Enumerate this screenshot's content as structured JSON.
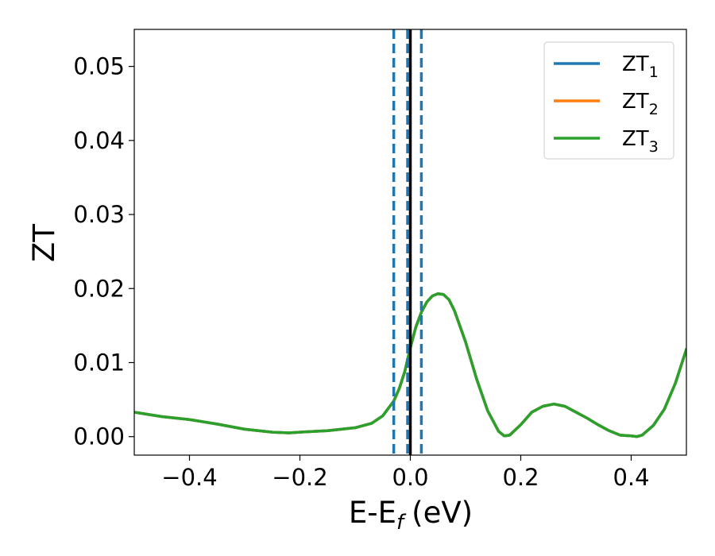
{
  "chart_data": {
    "type": "line",
    "xlabel": "E-E",
    "xlabel_sub": "f",
    "xlabel_unit": "(eV)",
    "ylabel": "ZT",
    "xlim": [
      -0.5,
      0.5
    ],
    "ylim": [
      -0.0025,
      0.055
    ],
    "x_ticks": [
      -0.4,
      -0.2,
      0.0,
      0.2,
      0.4
    ],
    "x_tick_labels": [
      "−0.4",
      "−0.2",
      "0.0",
      "0.2",
      "0.4"
    ],
    "y_ticks": [
      0.0,
      0.01,
      0.02,
      0.03,
      0.04,
      0.05
    ],
    "y_tick_labels": [
      "0.00",
      "0.01",
      "0.02",
      "0.03",
      "0.04",
      "0.05"
    ],
    "grid": false,
    "legend_position": "top-right",
    "series": [
      {
        "name": "ZT",
        "subscript": "1",
        "color": "#1f77b4",
        "x": [
          -0.5,
          -0.45,
          -0.4,
          -0.35,
          -0.3,
          -0.25,
          -0.22,
          -0.2,
          -0.15,
          -0.1,
          -0.07,
          -0.05,
          -0.03,
          -0.02,
          -0.01,
          0.0,
          0.01,
          0.02,
          0.03,
          0.04,
          0.05,
          0.06,
          0.07,
          0.08,
          0.1,
          0.12,
          0.14,
          0.16,
          0.17,
          0.18,
          0.2,
          0.22,
          0.24,
          0.26,
          0.28,
          0.3,
          0.32,
          0.34,
          0.36,
          0.38,
          0.4,
          0.41,
          0.42,
          0.44,
          0.46,
          0.48,
          0.5
        ],
        "y": [
          0.0033,
          0.0027,
          0.0023,
          0.0017,
          0.001,
          0.0006,
          0.0005,
          0.0006,
          0.0008,
          0.0012,
          0.0018,
          0.0028,
          0.0048,
          0.0065,
          0.0088,
          0.012,
          0.0148,
          0.0168,
          0.0182,
          0.019,
          0.0193,
          0.0192,
          0.0185,
          0.017,
          0.0128,
          0.0078,
          0.0035,
          0.0007,
          0.0001,
          0.0002,
          0.0016,
          0.0033,
          0.0041,
          0.0044,
          0.0041,
          0.0033,
          0.0025,
          0.0016,
          0.0008,
          0.0002,
          0.0001,
          0.0,
          0.0002,
          0.0015,
          0.0037,
          0.0072,
          0.0118
        ]
      },
      {
        "name": "ZT",
        "subscript": "2",
        "color": "#ff7f0e",
        "x": [
          -0.5,
          -0.45,
          -0.4,
          -0.35,
          -0.3,
          -0.25,
          -0.22,
          -0.2,
          -0.15,
          -0.1,
          -0.07,
          -0.05,
          -0.03,
          -0.02,
          -0.01,
          0.0,
          0.01,
          0.02,
          0.03,
          0.04,
          0.05,
          0.06,
          0.07,
          0.08,
          0.1,
          0.12,
          0.14,
          0.16,
          0.17,
          0.18,
          0.2,
          0.22,
          0.24,
          0.26,
          0.28,
          0.3,
          0.32,
          0.34,
          0.36,
          0.38,
          0.4,
          0.41,
          0.42,
          0.44,
          0.46,
          0.48,
          0.5
        ],
        "y": [
          0.0033,
          0.0027,
          0.0023,
          0.0017,
          0.001,
          0.0006,
          0.0005,
          0.0006,
          0.0008,
          0.0012,
          0.0018,
          0.0028,
          0.0048,
          0.0065,
          0.0088,
          0.012,
          0.0148,
          0.0168,
          0.0182,
          0.019,
          0.0193,
          0.0192,
          0.0185,
          0.017,
          0.0128,
          0.0078,
          0.0035,
          0.0007,
          0.0001,
          0.0002,
          0.0016,
          0.0033,
          0.0041,
          0.0044,
          0.0041,
          0.0033,
          0.0025,
          0.0016,
          0.0008,
          0.0002,
          0.0001,
          0.0,
          0.0002,
          0.0015,
          0.0037,
          0.0072,
          0.0118
        ]
      },
      {
        "name": "ZT",
        "subscript": "3",
        "color": "#2ca02c",
        "x": [
          -0.5,
          -0.45,
          -0.4,
          -0.35,
          -0.3,
          -0.25,
          -0.22,
          -0.2,
          -0.15,
          -0.1,
          -0.07,
          -0.05,
          -0.03,
          -0.02,
          -0.01,
          0.0,
          0.01,
          0.02,
          0.03,
          0.04,
          0.05,
          0.06,
          0.07,
          0.08,
          0.1,
          0.12,
          0.14,
          0.16,
          0.17,
          0.18,
          0.2,
          0.22,
          0.24,
          0.26,
          0.28,
          0.3,
          0.32,
          0.34,
          0.36,
          0.38,
          0.4,
          0.41,
          0.42,
          0.44,
          0.46,
          0.48,
          0.5
        ],
        "y": [
          0.0033,
          0.0027,
          0.0023,
          0.0017,
          0.001,
          0.0006,
          0.0005,
          0.0006,
          0.0008,
          0.0012,
          0.0018,
          0.0028,
          0.0048,
          0.0065,
          0.0088,
          0.012,
          0.0148,
          0.0168,
          0.0182,
          0.019,
          0.0193,
          0.0192,
          0.0185,
          0.017,
          0.0128,
          0.0078,
          0.0035,
          0.0007,
          0.0001,
          0.0002,
          0.0016,
          0.0033,
          0.0041,
          0.0044,
          0.0041,
          0.0033,
          0.0025,
          0.0016,
          0.0008,
          0.0002,
          0.0001,
          0.0,
          0.0002,
          0.0015,
          0.0037,
          0.0072,
          0.0118
        ]
      }
    ],
    "vertical_lines": [
      {
        "x": -0.03,
        "style": "dashed",
        "color": "#1f77b4"
      },
      {
        "x": -0.005,
        "style": "dashed",
        "color": "#1f77b4"
      },
      {
        "x": 0.02,
        "style": "dashed",
        "color": "#1f77b4"
      },
      {
        "x": 0.0,
        "style": "solid",
        "color": "#000000"
      }
    ]
  }
}
